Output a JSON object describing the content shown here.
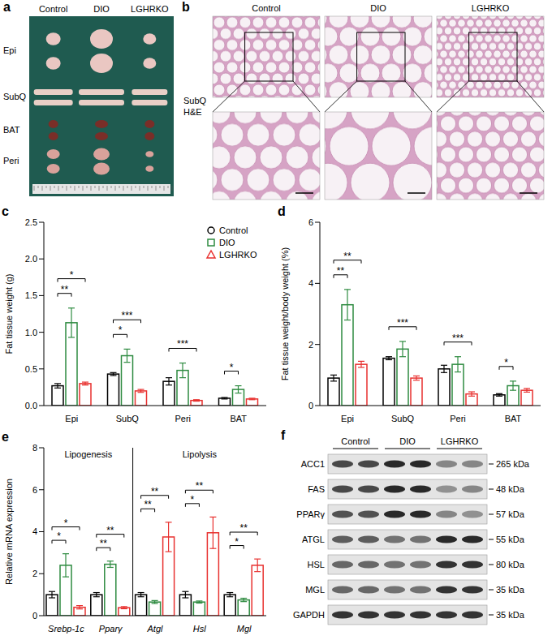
{
  "figure": {
    "a": {
      "panel": "a",
      "columns": [
        "Control",
        "DIO",
        "LGHRKO"
      ],
      "rows": [
        "Epi",
        "SubQ",
        "BAT",
        "Peri"
      ]
    },
    "b": {
      "panel": "b",
      "columns": [
        "Control",
        "DIO",
        "LGHRKO"
      ],
      "row_label": [
        "SubQ",
        "H&E"
      ]
    },
    "f": {
      "panel": "f",
      "columns": [
        "Control",
        "DIO",
        "LGHRKO"
      ],
      "rows": [
        {
          "name": "ACC1",
          "size": "265 kDa",
          "intensity": [
            0.75,
            0.75,
            0.9,
            0.9,
            0.45,
            0.45
          ]
        },
        {
          "name": "FAS",
          "size": "48 kDa",
          "intensity": [
            0.75,
            0.75,
            0.9,
            0.9,
            0.4,
            0.45
          ]
        },
        {
          "name": "PPARγ",
          "size": "57 kDa",
          "intensity": [
            0.7,
            0.7,
            0.9,
            0.9,
            0.45,
            0.4
          ]
        },
        {
          "name": "ATGL",
          "size": "55 kDa",
          "intensity": [
            0.65,
            0.65,
            0.55,
            0.55,
            0.9,
            0.9
          ]
        },
        {
          "name": "HSL",
          "size": "80 kDa",
          "intensity": [
            0.6,
            0.6,
            0.55,
            0.55,
            0.85,
            0.85
          ]
        },
        {
          "name": "MGL",
          "size": "35 kDa",
          "intensity": [
            0.6,
            0.6,
            0.55,
            0.55,
            0.85,
            0.85
          ]
        },
        {
          "name": "GAPDH",
          "size": "35 kDa",
          "intensity": [
            0.85,
            0.85,
            0.85,
            0.85,
            0.85,
            0.85
          ]
        }
      ]
    }
  },
  "chart_data": [
    {
      "panel": "c",
      "type": "bar",
      "categories": [
        "Epi",
        "SubQ",
        "Peri",
        "BAT"
      ],
      "y_label": "Fat tissue weight (g)",
      "ylim": [
        0,
        2.5
      ],
      "yticks": [
        {
          "value": 0,
          "label": "0.0"
        },
        {
          "value": 0.5,
          "label": "0.5"
        },
        {
          "value": 1,
          "label": "1.0"
        },
        {
          "value": 1.5,
          "label": "1.5"
        },
        {
          "value": 2,
          "label": "2.0"
        },
        {
          "value": 2.5,
          "label": "2.5"
        }
      ],
      "legend": "upper right",
      "series": [
        {
          "name": "Control",
          "color": "#000000",
          "marker": "circle",
          "values": [
            0.27,
            0.43,
            0.33,
            0.1
          ],
          "errors": [
            0.03,
            0.02,
            0.05,
            0.01
          ]
        },
        {
          "name": "DIO",
          "color": "#2e8b40",
          "marker": "square",
          "values": [
            1.13,
            0.68,
            0.48,
            0.22
          ],
          "errors": [
            0.2,
            0.09,
            0.1,
            0.05
          ]
        },
        {
          "name": "LGHRKO",
          "color": "#e8312f",
          "marker": "triangle",
          "values": [
            0.3,
            0.2,
            0.07,
            0.09
          ],
          "errors": [
            0.02,
            0.02,
            0.01,
            0.01
          ]
        }
      ],
      "annotations": [
        {
          "category": "Epi",
          "from": "Control",
          "to": "DIO",
          "text": "**"
        },
        {
          "category": "Epi",
          "from": "Control",
          "to": "LGHRKO",
          "text": "*"
        },
        {
          "category": "SubQ",
          "from": "Control",
          "to": "DIO",
          "text": "*"
        },
        {
          "category": "SubQ",
          "from": "Control",
          "to": "LGHRKO",
          "text": "***"
        },
        {
          "category": "Peri",
          "from": "Control",
          "to": "LGHRKO",
          "text": "***"
        },
        {
          "category": "BAT",
          "from": "Control",
          "to": "DIO",
          "text": "*"
        }
      ]
    },
    {
      "panel": "d",
      "type": "bar",
      "categories": [
        "Epi",
        "SubQ",
        "Peri",
        "BAT"
      ],
      "y_label": "Fat tissue weight/body weight (%)",
      "ylim": [
        0,
        6
      ],
      "yticks": [
        0,
        2,
        4,
        6
      ],
      "series": [
        {
          "name": "Control",
          "color": "#000000",
          "marker": "circle",
          "values": [
            0.9,
            1.55,
            1.2,
            0.35
          ],
          "errors": [
            0.1,
            0.05,
            0.12,
            0.04
          ]
        },
        {
          "name": "DIO",
          "color": "#2e8b40",
          "marker": "square",
          "values": [
            3.3,
            1.85,
            1.35,
            0.65
          ],
          "errors": [
            0.5,
            0.25,
            0.25,
            0.15
          ]
        },
        {
          "name": "LGHRKO",
          "color": "#e8312f",
          "marker": "triangle",
          "values": [
            1.35,
            0.9,
            0.38,
            0.5
          ],
          "errors": [
            0.1,
            0.07,
            0.07,
            0.06
          ]
        }
      ],
      "annotations": [
        {
          "category": "Epi",
          "from": "Control",
          "to": "DIO",
          "text": "**"
        },
        {
          "category": "Epi",
          "from": "Control",
          "to": "LGHRKO",
          "text": "**"
        },
        {
          "category": "SubQ",
          "from": "Control",
          "to": "LGHRKO",
          "text": "***"
        },
        {
          "category": "Peri",
          "from": "Control",
          "to": "LGHRKO",
          "text": "***"
        },
        {
          "category": "BAT",
          "from": "Control",
          "to": "DIO",
          "text": "*"
        }
      ]
    },
    {
      "panel": "e",
      "type": "bar",
      "categories": [
        "Srebp-1c",
        "Pparγ",
        "Atgl",
        "Hsl",
        "Mgl"
      ],
      "groups": [
        {
          "name": "Lipogenesis",
          "categories": [
            "Srebp-1c",
            "Pparγ"
          ]
        },
        {
          "name": "Lipolysis",
          "categories": [
            "Atgl",
            "Hsl",
            "Mgl"
          ]
        }
      ],
      "y_label": "Relative mRNA expression",
      "ylim": [
        0,
        8
      ],
      "yticks": [
        0,
        2,
        4,
        6,
        8
      ],
      "series": [
        {
          "name": "Control",
          "color": "#000000",
          "marker": "circle",
          "values": [
            1.0,
            1.0,
            1.0,
            1.0,
            1.0
          ],
          "errors": [
            0.15,
            0.1,
            0.1,
            0.15,
            0.1
          ]
        },
        {
          "name": "DIO",
          "color": "#2e8b40",
          "marker": "square",
          "values": [
            2.4,
            2.45,
            0.65,
            0.65,
            0.75
          ],
          "errors": [
            0.55,
            0.15,
            0.07,
            0.05,
            0.08
          ]
        },
        {
          "name": "LGHRKO",
          "color": "#e8312f",
          "marker": "triangle",
          "values": [
            0.4,
            0.38,
            3.75,
            3.95,
            2.4
          ],
          "errors": [
            0.08,
            0.05,
            0.7,
            0.75,
            0.3
          ]
        }
      ],
      "annotations": [
        {
          "category": "Srebp-1c",
          "from": "Control",
          "to": "DIO",
          "text": "*"
        },
        {
          "category": "Srebp-1c",
          "from": "Control",
          "to": "LGHRKO",
          "text": "*"
        },
        {
          "category": "Pparγ",
          "from": "Control",
          "to": "DIO",
          "text": "**"
        },
        {
          "category": "Pparγ",
          "from": "Control",
          "to": "LGHRKO",
          "text": "**"
        },
        {
          "category": "Atgl",
          "from": "Control",
          "to": "DIO",
          "text": "**"
        },
        {
          "category": "Atgl",
          "from": "Control",
          "to": "LGHRKO",
          "text": "**"
        },
        {
          "category": "Hsl",
          "from": "Control",
          "to": "DIO",
          "text": "*"
        },
        {
          "category": "Hsl",
          "from": "Control",
          "to": "LGHRKO",
          "text": "**"
        },
        {
          "category": "Mgl",
          "from": "Control",
          "to": "DIO",
          "text": "*"
        },
        {
          "category": "Mgl",
          "from": "Control",
          "to": "LGHRKO",
          "text": "**"
        }
      ]
    }
  ]
}
